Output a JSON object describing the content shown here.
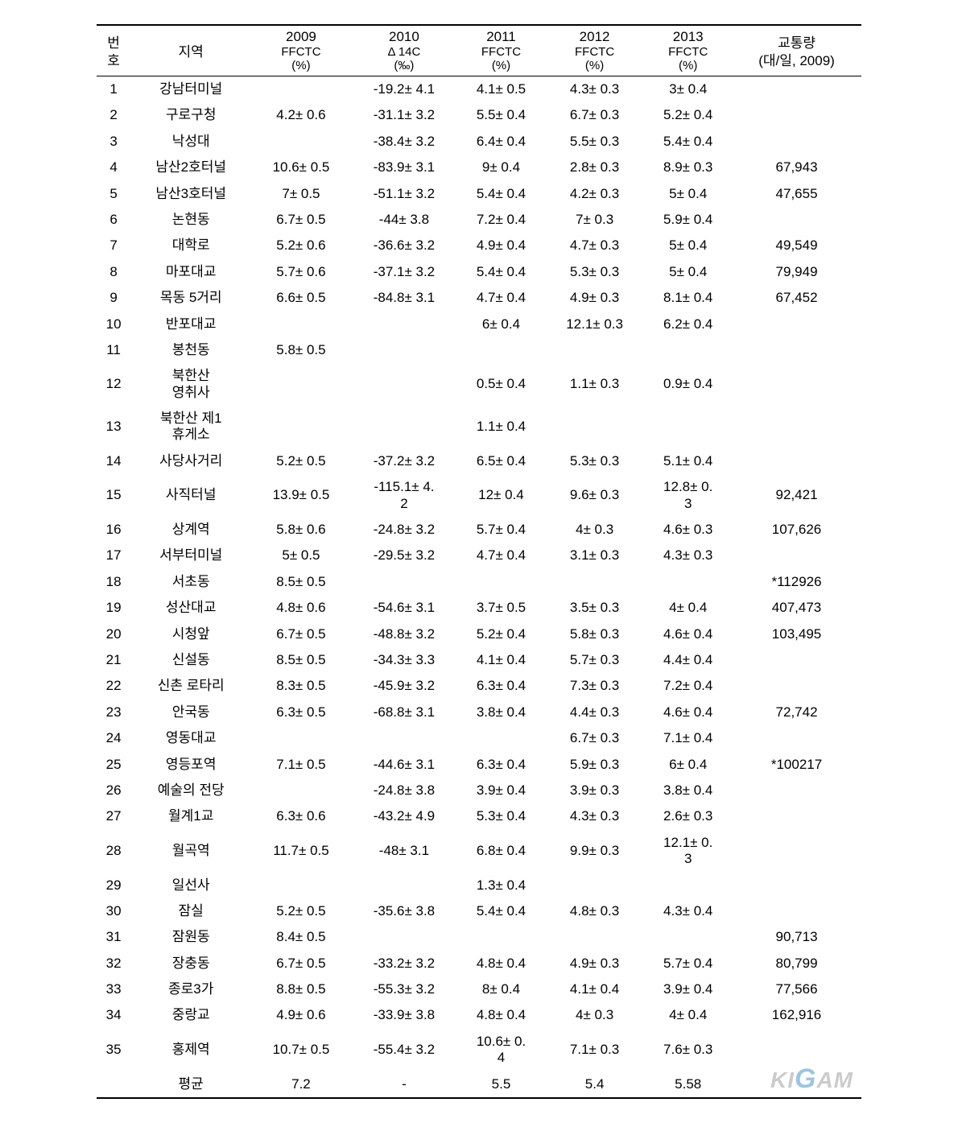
{
  "headers": {
    "num": "번\n호",
    "region": "지역",
    "y2009": "2009",
    "y2010": "2010",
    "y2011": "2011",
    "y2012": "2012",
    "y2013": "2013",
    "ffctc2009": "FFCTC\n(%)",
    "delta14c": "Δ 14C\n(‰)",
    "ffctc2011": "FFCTC\n(%)",
    "ffctc2012": "FFCTC\n(%)",
    "ffctc2013": "FFCTC\n(%)",
    "traffic": "교통량\n(대/일, 2009)"
  },
  "rows": [
    {
      "n": "1",
      "region": "강남터미널",
      "c2009": "",
      "c2010": "-19.2± 4.1",
      "c2011": "4.1± 0.5",
      "c2012": "4.3± 0.3",
      "c2013": "3± 0.4",
      "traffic": ""
    },
    {
      "n": "2",
      "region": "구로구청",
      "c2009": "4.2± 0.6",
      "c2010": "-31.1± 3.2",
      "c2011": "5.5± 0.4",
      "c2012": "6.7± 0.3",
      "c2013": "5.2± 0.4",
      "traffic": ""
    },
    {
      "n": "3",
      "region": "낙성대",
      "c2009": "",
      "c2010": "-38.4± 3.2",
      "c2011": "6.4± 0.4",
      "c2012": "5.5± 0.3",
      "c2013": "5.4± 0.4",
      "traffic": ""
    },
    {
      "n": "4",
      "region": "남산2호터널",
      "c2009": "10.6± 0.5",
      "c2010": "-83.9± 3.1",
      "c2011": "9± 0.4",
      "c2012": "2.8± 0.3",
      "c2013": "8.9± 0.3",
      "traffic": "67,943"
    },
    {
      "n": "5",
      "region": "남산3호터널",
      "c2009": "7± 0.5",
      "c2010": "-51.1± 3.2",
      "c2011": "5.4± 0.4",
      "c2012": "4.2± 0.3",
      "c2013": "5± 0.4",
      "traffic": "47,655"
    },
    {
      "n": "6",
      "region": "논현동",
      "c2009": "6.7± 0.5",
      "c2010": "-44± 3.8",
      "c2011": "7.2± 0.4",
      "c2012": "7± 0.3",
      "c2013": "5.9± 0.4",
      "traffic": ""
    },
    {
      "n": "7",
      "region": "대학로",
      "c2009": "5.2± 0.6",
      "c2010": "-36.6± 3.2",
      "c2011": "4.9± 0.4",
      "c2012": "4.7± 0.3",
      "c2013": "5± 0.4",
      "traffic": "49,549"
    },
    {
      "n": "8",
      "region": "마포대교",
      "c2009": "5.7± 0.6",
      "c2010": "-37.1± 3.2",
      "c2011": "5.4± 0.4",
      "c2012": "5.3± 0.3",
      "c2013": "5± 0.4",
      "traffic": "79,949"
    },
    {
      "n": "9",
      "region": "목동 5거리",
      "c2009": "6.6± 0.5",
      "c2010": "-84.8± 3.1",
      "c2011": "4.7± 0.4",
      "c2012": "4.9± 0.3",
      "c2013": "8.1± 0.4",
      "traffic": "67,452"
    },
    {
      "n": "10",
      "region": "반포대교",
      "c2009": "",
      "c2010": "",
      "c2011": "6± 0.4",
      "c2012": "12.1± 0.3",
      "c2013": "6.2± 0.4",
      "traffic": ""
    },
    {
      "n": "11",
      "region": "봉천동",
      "c2009": "5.8± 0.5",
      "c2010": "",
      "c2011": "",
      "c2012": "",
      "c2013": "",
      "traffic": ""
    },
    {
      "n": "12",
      "region": "북한산\n영취사",
      "c2009": "",
      "c2010": "",
      "c2011": "0.5± 0.4",
      "c2012": "1.1± 0.3",
      "c2013": "0.9± 0.4",
      "traffic": ""
    },
    {
      "n": "13",
      "region": "북한산 제1\n휴게소",
      "c2009": "",
      "c2010": "",
      "c2011": "1.1± 0.4",
      "c2012": "",
      "c2013": "",
      "traffic": ""
    },
    {
      "n": "14",
      "region": "사당사거리",
      "c2009": "5.2± 0.5",
      "c2010": "-37.2± 3.2",
      "c2011": "6.5± 0.4",
      "c2012": "5.3± 0.3",
      "c2013": "5.1± 0.4",
      "traffic": ""
    },
    {
      "n": "15",
      "region": "사직터널",
      "c2009": "13.9± 0.5",
      "c2010": "-115.1± 4.\n2",
      "c2011": "12± 0.4",
      "c2012": "9.6± 0.3",
      "c2013": "12.8± 0.\n3",
      "traffic": "92,421"
    },
    {
      "n": "16",
      "region": "상계역",
      "c2009": "5.8± 0.6",
      "c2010": "-24.8± 3.2",
      "c2011": "5.7± 0.4",
      "c2012": "4± 0.3",
      "c2013": "4.6± 0.3",
      "traffic": "107,626"
    },
    {
      "n": "17",
      "region": "서부터미널",
      "c2009": "5± 0.5",
      "c2010": "-29.5± 3.2",
      "c2011": "4.7± 0.4",
      "c2012": "3.1± 0.3",
      "c2013": "4.3± 0.3",
      "traffic": ""
    },
    {
      "n": "18",
      "region": "서초동",
      "c2009": "8.5± 0.5",
      "c2010": "",
      "c2011": "",
      "c2012": "",
      "c2013": "",
      "traffic": "*112926"
    },
    {
      "n": "19",
      "region": "성산대교",
      "c2009": "4.8± 0.6",
      "c2010": "-54.6± 3.1",
      "c2011": "3.7± 0.5",
      "c2012": "3.5± 0.3",
      "c2013": "4± 0.4",
      "traffic": "407,473"
    },
    {
      "n": "20",
      "region": "시청앞",
      "c2009": "6.7± 0.5",
      "c2010": "-48.8± 3.2",
      "c2011": "5.2± 0.4",
      "c2012": "5.8± 0.3",
      "c2013": "4.6± 0.4",
      "traffic": "103,495"
    },
    {
      "n": "21",
      "region": "신설동",
      "c2009": "8.5± 0.5",
      "c2010": "-34.3± 3.3",
      "c2011": "4.1± 0.4",
      "c2012": "5.7± 0.3",
      "c2013": "4.4± 0.4",
      "traffic": ""
    },
    {
      "n": "22",
      "region": "신촌 로타리",
      "c2009": "8.3± 0.5",
      "c2010": "-45.9± 3.2",
      "c2011": "6.3± 0.4",
      "c2012": "7.3± 0.3",
      "c2013": "7.2± 0.4",
      "traffic": ""
    },
    {
      "n": "23",
      "region": "안국동",
      "c2009": "6.3± 0.5",
      "c2010": "-68.8± 3.1",
      "c2011": "3.8± 0.4",
      "c2012": "4.4± 0.3",
      "c2013": "4.6± 0.4",
      "traffic": "72,742"
    },
    {
      "n": "24",
      "region": "영동대교",
      "c2009": "",
      "c2010": "",
      "c2011": "",
      "c2012": "6.7± 0.3",
      "c2013": "7.1± 0.4",
      "traffic": ""
    },
    {
      "n": "25",
      "region": "영등포역",
      "c2009": "7.1± 0.5",
      "c2010": "-44.6± 3.1",
      "c2011": "6.3± 0.4",
      "c2012": "5.9± 0.3",
      "c2013": "6± 0.4",
      "traffic": "*100217"
    },
    {
      "n": "26",
      "region": "예술의 전당",
      "c2009": "",
      "c2010": "-24.8± 3.8",
      "c2011": "3.9± 0.4",
      "c2012": "3.9± 0.3",
      "c2013": "3.8± 0.4",
      "traffic": ""
    },
    {
      "n": "27",
      "region": "월계1교",
      "c2009": "6.3± 0.6",
      "c2010": "-43.2± 4.9",
      "c2011": "5.3± 0.4",
      "c2012": "4.3± 0.3",
      "c2013": "2.6± 0.3",
      "traffic": ""
    },
    {
      "n": "28",
      "region": "월곡역",
      "c2009": "11.7± 0.5",
      "c2010": "-48± 3.1",
      "c2011": "6.8± 0.4",
      "c2012": "9.9± 0.3",
      "c2013": "12.1± 0.\n3",
      "traffic": ""
    },
    {
      "n": "29",
      "region": "일선사",
      "c2009": "",
      "c2010": "",
      "c2011": "1.3± 0.4",
      "c2012": "",
      "c2013": "",
      "traffic": ""
    },
    {
      "n": "30",
      "region": "잠실",
      "c2009": "5.2± 0.5",
      "c2010": "-35.6± 3.8",
      "c2011": "5.4± 0.4",
      "c2012": "4.8± 0.3",
      "c2013": "4.3± 0.4",
      "traffic": ""
    },
    {
      "n": "31",
      "region": "잠원동",
      "c2009": "8.4± 0.5",
      "c2010": "",
      "c2011": "",
      "c2012": "",
      "c2013": "",
      "traffic": "90,713"
    },
    {
      "n": "32",
      "region": "장충동",
      "c2009": "6.7± 0.5",
      "c2010": "-33.2± 3.2",
      "c2011": "4.8± 0.4",
      "c2012": "4.9± 0.3",
      "c2013": "5.7± 0.4",
      "traffic": "80,799"
    },
    {
      "n": "33",
      "region": "종로3가",
      "c2009": "8.8± 0.5",
      "c2010": "-55.3± 3.2",
      "c2011": "8± 0.4",
      "c2012": "4.1± 0.4",
      "c2013": "3.9± 0.4",
      "traffic": "77,566"
    },
    {
      "n": "34",
      "region": "중랑교",
      "c2009": "4.9± 0.6",
      "c2010": "-33.9± 3.8",
      "c2011": "4.8± 0.4",
      "c2012": "4± 0.3",
      "c2013": "4± 0.4",
      "traffic": "162,916"
    },
    {
      "n": "35",
      "region": "홍제역",
      "c2009": "10.7± 0.5",
      "c2010": "-55.4± 3.2",
      "c2011": "10.6± 0.\n4",
      "c2012": "7.1± 0.3",
      "c2013": "7.6± 0.3",
      "traffic": ""
    },
    {
      "n": "",
      "region": "평균",
      "c2009": "7.2",
      "c2010": "-",
      "c2011": "5.5",
      "c2012": "5.4",
      "c2013": "5.58",
      "traffic": ""
    }
  ],
  "watermark": "KIGAM"
}
